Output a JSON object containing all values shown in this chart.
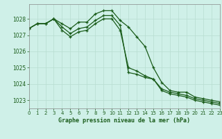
{
  "title": "Graphe pression niveau de la mer (hPa)",
  "background_color": "#cff0e8",
  "grid_color": "#b8ddd0",
  "line_color": "#1a5c1a",
  "xlim": [
    0,
    23
  ],
  "ylim": [
    1022.5,
    1028.9
  ],
  "yticks": [
    1023,
    1024,
    1025,
    1026,
    1027,
    1028
  ],
  "xticks": [
    0,
    1,
    2,
    3,
    4,
    5,
    6,
    7,
    8,
    9,
    10,
    11,
    12,
    13,
    14,
    15,
    16,
    17,
    18,
    19,
    20,
    21,
    22,
    23
  ],
  "series": [
    [
      1027.4,
      1027.7,
      1027.7,
      1028.0,
      1027.7,
      1027.4,
      1027.8,
      1027.8,
      1028.3,
      1028.5,
      1028.5,
      1027.9,
      1027.5,
      1026.9,
      1026.3,
      1025.0,
      1024.1,
      1023.6,
      1023.5,
      1023.5,
      1023.2,
      1023.1,
      1023.0,
      1022.9
    ],
    [
      1027.4,
      1027.7,
      1027.7,
      1028.0,
      1027.5,
      1027.1,
      1027.4,
      1027.5,
      1027.9,
      1028.2,
      1028.2,
      1027.6,
      1024.7,
      1024.6,
      1024.4,
      1024.3,
      1023.7,
      1023.5,
      1023.4,
      1023.3,
      1023.1,
      1023.0,
      1022.9,
      1022.8
    ],
    [
      1027.4,
      1027.7,
      1027.7,
      1028.0,
      1027.3,
      1026.9,
      1027.2,
      1027.3,
      1027.7,
      1028.0,
      1028.0,
      1027.3,
      1025.0,
      1024.8,
      1024.5,
      1024.3,
      1023.6,
      1023.4,
      1023.3,
      1023.2,
      1023.0,
      1022.9,
      1022.8,
      1022.7
    ]
  ]
}
